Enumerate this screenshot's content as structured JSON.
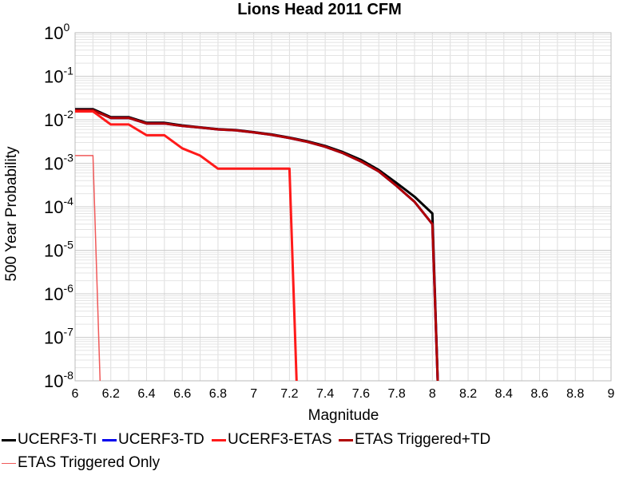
{
  "chart_data": {
    "type": "line",
    "title": "Lions Head 2011 CFM",
    "xlabel": "Magnitude",
    "ylabel": "500 Year Probability",
    "xlim": [
      6,
      9
    ],
    "ylim": [
      1e-08,
      1
    ],
    "yscale": "log",
    "grid": true,
    "legend_position": "bottom",
    "xticks": [
      "6",
      "6.2",
      "6.4",
      "6.6",
      "6.8",
      "7",
      "7.2",
      "7.4",
      "7.6",
      "7.8",
      "8",
      "8.2",
      "8.4",
      "8.6",
      "8.8",
      "9"
    ],
    "yticks": [
      {
        "base": "10",
        "exp": "0"
      },
      {
        "base": "10",
        "exp": "-1"
      },
      {
        "base": "10",
        "exp": "-2"
      },
      {
        "base": "10",
        "exp": "-3"
      },
      {
        "base": "10",
        "exp": "-4"
      },
      {
        "base": "10",
        "exp": "-5"
      },
      {
        "base": "10",
        "exp": "-6"
      },
      {
        "base": "10",
        "exp": "-7"
      },
      {
        "base": "10",
        "exp": "-8"
      }
    ],
    "series": [
      {
        "name": "UCERF3-TI",
        "color": "#000000",
        "width": 3,
        "x": [
          6.0,
          6.1,
          6.2,
          6.3,
          6.4,
          6.5,
          6.6,
          6.7,
          6.8,
          6.9,
          7.0,
          7.1,
          7.2,
          7.3,
          7.4,
          7.5,
          7.6,
          7.7,
          7.8,
          7.9,
          8.0,
          8.03
        ],
        "y": [
          0.0175,
          0.0175,
          0.0115,
          0.0115,
          0.0085,
          0.0085,
          0.0074,
          0.0067,
          0.0061,
          0.0058,
          0.0052,
          0.0046,
          0.0039,
          0.0032,
          0.0025,
          0.0018,
          0.0012,
          0.0007,
          0.00035,
          0.00017,
          7e-05,
          1e-08
        ]
      },
      {
        "name": "UCERF3-TD",
        "color": "#0000ee",
        "width": 3,
        "x": [
          6.0,
          6.1,
          6.2,
          6.3,
          6.4,
          6.5,
          6.6,
          6.7,
          6.8,
          6.9,
          7.0,
          7.1,
          7.2,
          7.3,
          7.4,
          7.5,
          7.6,
          7.7,
          7.8,
          7.9,
          8.0,
          8.03
        ],
        "y": [
          0.0165,
          0.0165,
          0.011,
          0.011,
          0.0082,
          0.0082,
          0.0072,
          0.0066,
          0.006,
          0.0057,
          0.0051,
          0.0045,
          0.0038,
          0.0031,
          0.0024,
          0.0017,
          0.0011,
          0.00065,
          0.0003,
          0.00013,
          4e-05,
          1e-08
        ]
      },
      {
        "name": "UCERF3-ETAS",
        "color": "#ff1a1a",
        "width": 3,
        "x": [
          6.0,
          6.1,
          6.2,
          6.3,
          6.4,
          6.5,
          6.6,
          6.7,
          6.8,
          6.9,
          7.0,
          7.1,
          7.2,
          7.24
        ],
        "y": [
          0.0155,
          0.0155,
          0.0078,
          0.0078,
          0.0044,
          0.0044,
          0.0022,
          0.0015,
          0.00075,
          0.00075,
          0.00075,
          0.00075,
          0.00075,
          1e-08
        ]
      },
      {
        "name": "ETAS Triggered+TD",
        "color": "#b00000",
        "width": 3,
        "x": [
          6.0,
          6.1,
          6.2,
          6.3,
          6.4,
          6.5,
          6.6,
          6.7,
          6.8,
          6.9,
          7.0,
          7.1,
          7.2,
          7.3,
          7.4,
          7.5,
          7.6,
          7.7,
          7.8,
          7.9,
          8.0,
          8.03
        ],
        "y": [
          0.0165,
          0.0165,
          0.011,
          0.011,
          0.0082,
          0.0082,
          0.0072,
          0.0066,
          0.006,
          0.0057,
          0.0051,
          0.0045,
          0.0038,
          0.0031,
          0.0024,
          0.0017,
          0.0011,
          0.00065,
          0.0003,
          0.00013,
          4e-05,
          1e-08
        ]
      },
      {
        "name": "ETAS Triggered Only",
        "color": "#f05a5a",
        "width": 1.5,
        "x": [
          6.0,
          6.1,
          6.14
        ],
        "y": [
          0.0015,
          0.0015,
          1e-08
        ]
      }
    ]
  }
}
